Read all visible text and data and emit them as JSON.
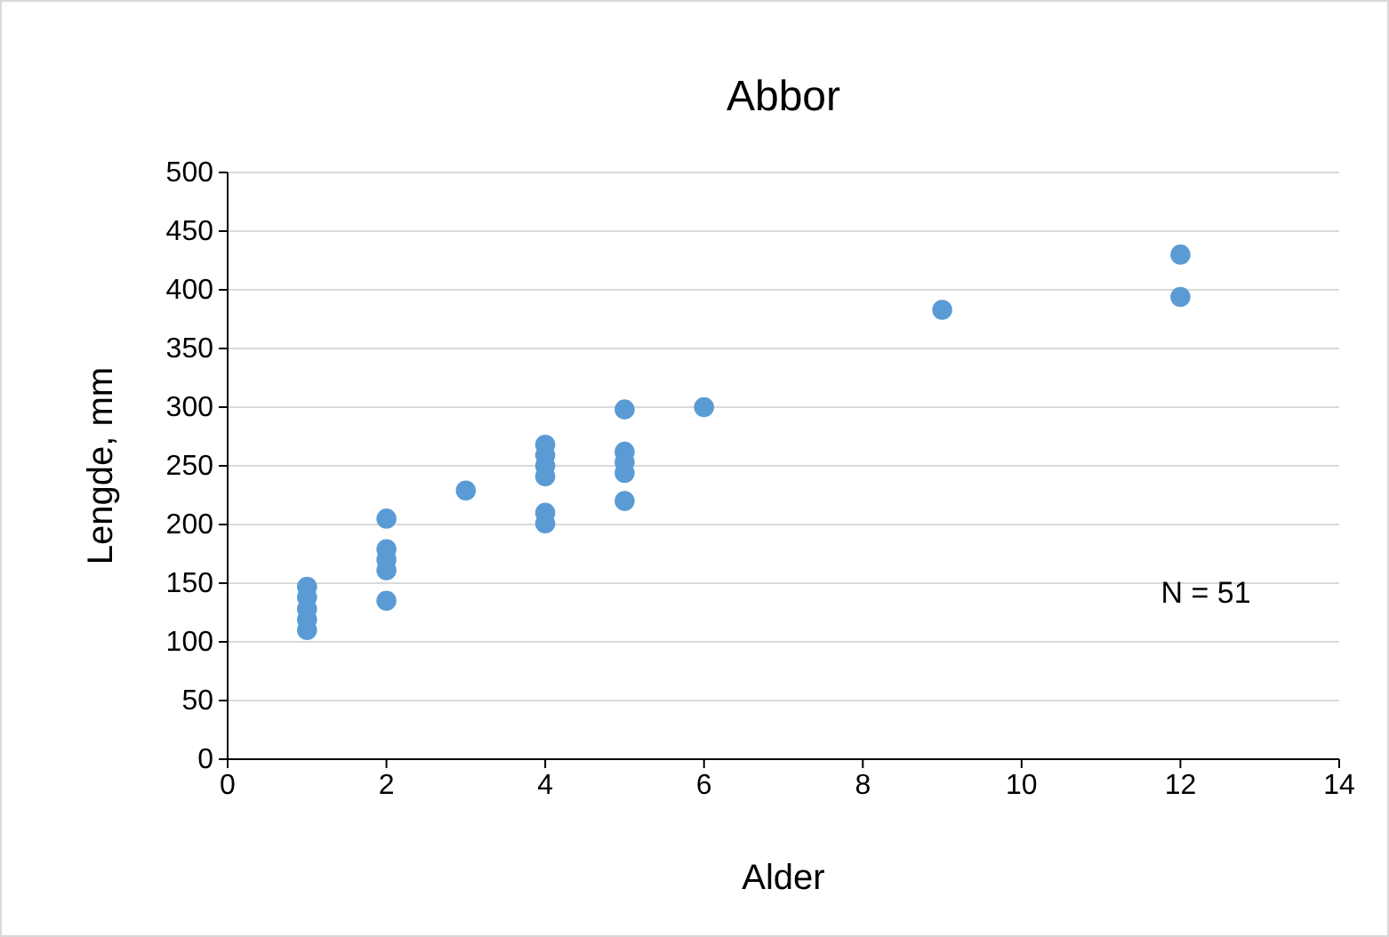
{
  "chart_data": {
    "type": "scatter",
    "title": "Abbor",
    "xlabel": "Alder",
    "ylabel": "Lengde, mm",
    "x": [
      1,
      1,
      1,
      1,
      1,
      2,
      2,
      2,
      2,
      2,
      3,
      4,
      4,
      4,
      4,
      4,
      4,
      5,
      5,
      5,
      5,
      5,
      6,
      9,
      12,
      12
    ],
    "values": [
      147,
      138,
      128,
      119,
      110,
      205,
      179,
      170,
      161,
      135,
      229,
      268,
      259,
      250,
      241,
      210,
      201,
      298,
      262,
      253,
      244,
      220,
      300,
      383,
      430,
      394
    ],
    "color": "#5b9bd5",
    "marker": "circle",
    "xlim": [
      0,
      14
    ],
    "xticks": [
      0,
      2,
      4,
      6,
      8,
      10,
      12,
      14
    ],
    "ylim": [
      0,
      500
    ],
    "yticks": [
      0,
      50,
      100,
      150,
      200,
      250,
      300,
      350,
      400,
      450,
      500
    ],
    "grid": "y",
    "annotations": [
      "N = 51"
    ]
  }
}
